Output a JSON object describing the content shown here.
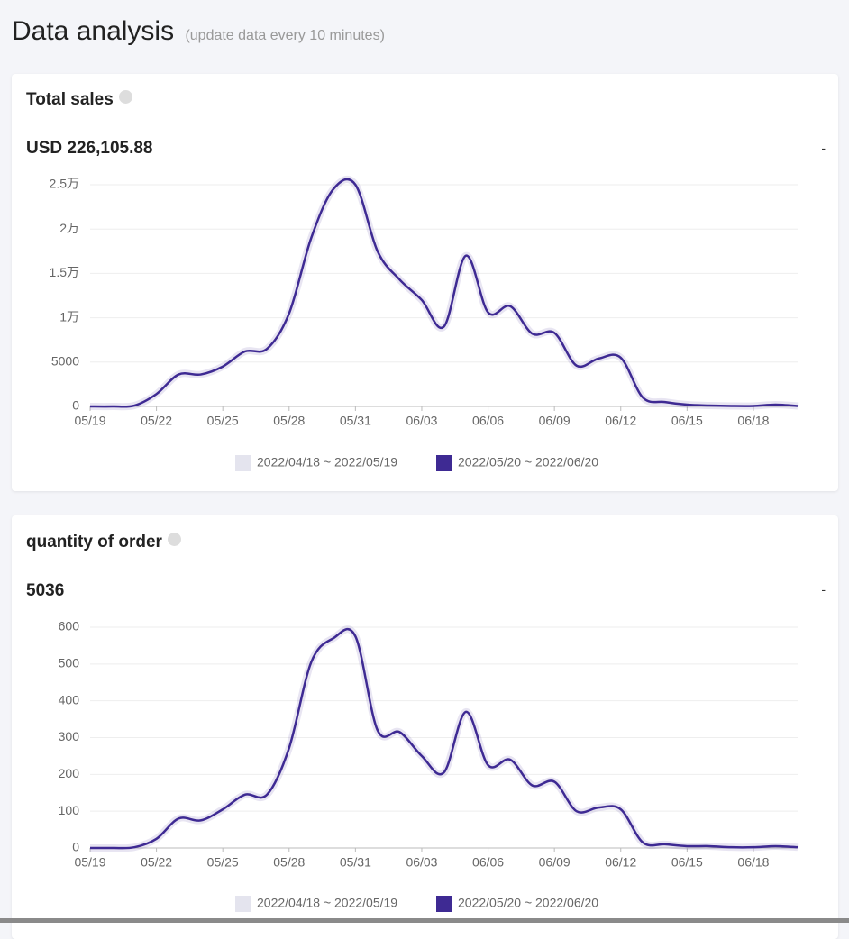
{
  "header": {
    "title": "Data analysis",
    "subtitle": "(update data every 10 minutes)"
  },
  "cards": [
    {
      "title": "Total sales",
      "total": "USD 226,105.88",
      "change": "-"
    },
    {
      "title": "quantity of order",
      "total": "5036",
      "change": "-"
    }
  ],
  "chart_data": [
    {
      "type": "line",
      "categories": [
        "05/19",
        null,
        null,
        "05/22",
        null,
        null,
        "05/25",
        null,
        null,
        "05/28",
        null,
        null,
        "05/31",
        null,
        null,
        "06/03",
        null,
        null,
        "06/06",
        null,
        null,
        "06/09",
        null,
        null,
        "06/12",
        null,
        null,
        "06/15",
        null,
        null,
        "06/18",
        null,
        null
      ],
      "series": [
        {
          "name": "2022/04/18 ~ 2022/05/19",
          "color": "#e4e4ee"
        },
        {
          "name": "2022/05/20 ~ 2022/06/20",
          "color": "#3e2a93",
          "values": [
            0,
            0,
            100,
            1400,
            3600,
            3600,
            4500,
            6200,
            6500,
            10500,
            19000,
            24500,
            25000,
            17500,
            14300,
            12000,
            9000,
            17000,
            10600,
            11300,
            8200,
            8300,
            4600,
            5400,
            5500,
            1000,
            500,
            200,
            100,
            50,
            50,
            200,
            50
          ]
        }
      ],
      "ylim": [
        0,
        25000
      ],
      "yticks": [
        0,
        5000,
        {
          "value": 10000,
          "label": "1万"
        },
        {
          "value": 15000,
          "label": "1.5万"
        },
        {
          "value": 20000,
          "label": "2万"
        },
        {
          "value": 25000,
          "label": "2.5万"
        }
      ],
      "grid": true
    },
    {
      "type": "line",
      "categories": [
        "05/19",
        null,
        null,
        "05/22",
        null,
        null,
        "05/25",
        null,
        null,
        "05/28",
        null,
        null,
        "05/31",
        null,
        null,
        "06/03",
        null,
        null,
        "06/06",
        null,
        null,
        "06/09",
        null,
        null,
        "06/12",
        null,
        null,
        "06/15",
        null,
        null,
        "06/18",
        null,
        null
      ],
      "series": [
        {
          "name": "2022/04/18 ~ 2022/05/19",
          "color": "#e4e4ee"
        },
        {
          "name": "2022/05/20 ~ 2022/06/20",
          "color": "#3e2a93",
          "values": [
            0,
            0,
            2,
            25,
            80,
            75,
            105,
            145,
            145,
            272,
            505,
            570,
            575,
            320,
            315,
            250,
            205,
            370,
            225,
            240,
            170,
            180,
            100,
            110,
            105,
            15,
            10,
            5,
            5,
            2,
            2,
            5,
            2
          ]
        }
      ],
      "ylim": [
        0,
        600
      ],
      "yticks": [
        0,
        100,
        200,
        300,
        400,
        500,
        600
      ],
      "grid": true
    }
  ]
}
